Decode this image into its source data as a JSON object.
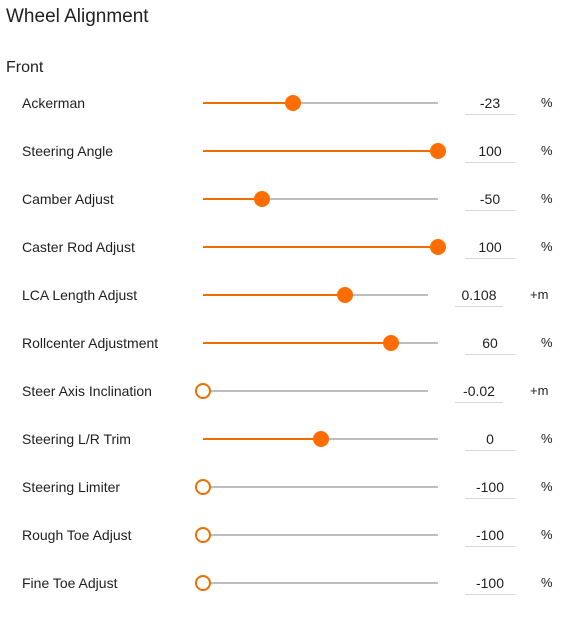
{
  "title": "Wheel Alignment",
  "section": "Front",
  "accent_color": "#ff6d00",
  "track_color": "#bdbdbd",
  "rows": [
    {
      "label": "Ackerman",
      "value": "-23",
      "unit": "%",
      "position": 0.385
    },
    {
      "label": "Steering Angle",
      "value": "100",
      "unit": "%",
      "position": 1.0
    },
    {
      "label": "Camber Adjust",
      "value": "-50",
      "unit": "%",
      "position": 0.25
    },
    {
      "label": "Caster Rod Adjust",
      "value": "100",
      "unit": "%",
      "position": 1.0
    },
    {
      "label": "LCA Length Adjust",
      "value": "0.108",
      "unit": "+m",
      "position": 0.633
    },
    {
      "label": "Rollcenter Adjustment",
      "value": "60",
      "unit": "%",
      "position": 0.8
    },
    {
      "label": "Steer Axis Inclination",
      "value": "-0.02",
      "unit": "+m",
      "position": 0.0
    },
    {
      "label": "Steering L/R Trim",
      "value": "0",
      "unit": "%",
      "position": 0.5
    },
    {
      "label": "Steering Limiter",
      "value": "-100",
      "unit": "%",
      "position": 0.0
    },
    {
      "label": "Rough Toe Adjust",
      "value": "-100",
      "unit": "%",
      "position": 0.0
    },
    {
      "label": "Fine Toe Adjust",
      "value": "-100",
      "unit": "%",
      "position": 0.0
    }
  ]
}
